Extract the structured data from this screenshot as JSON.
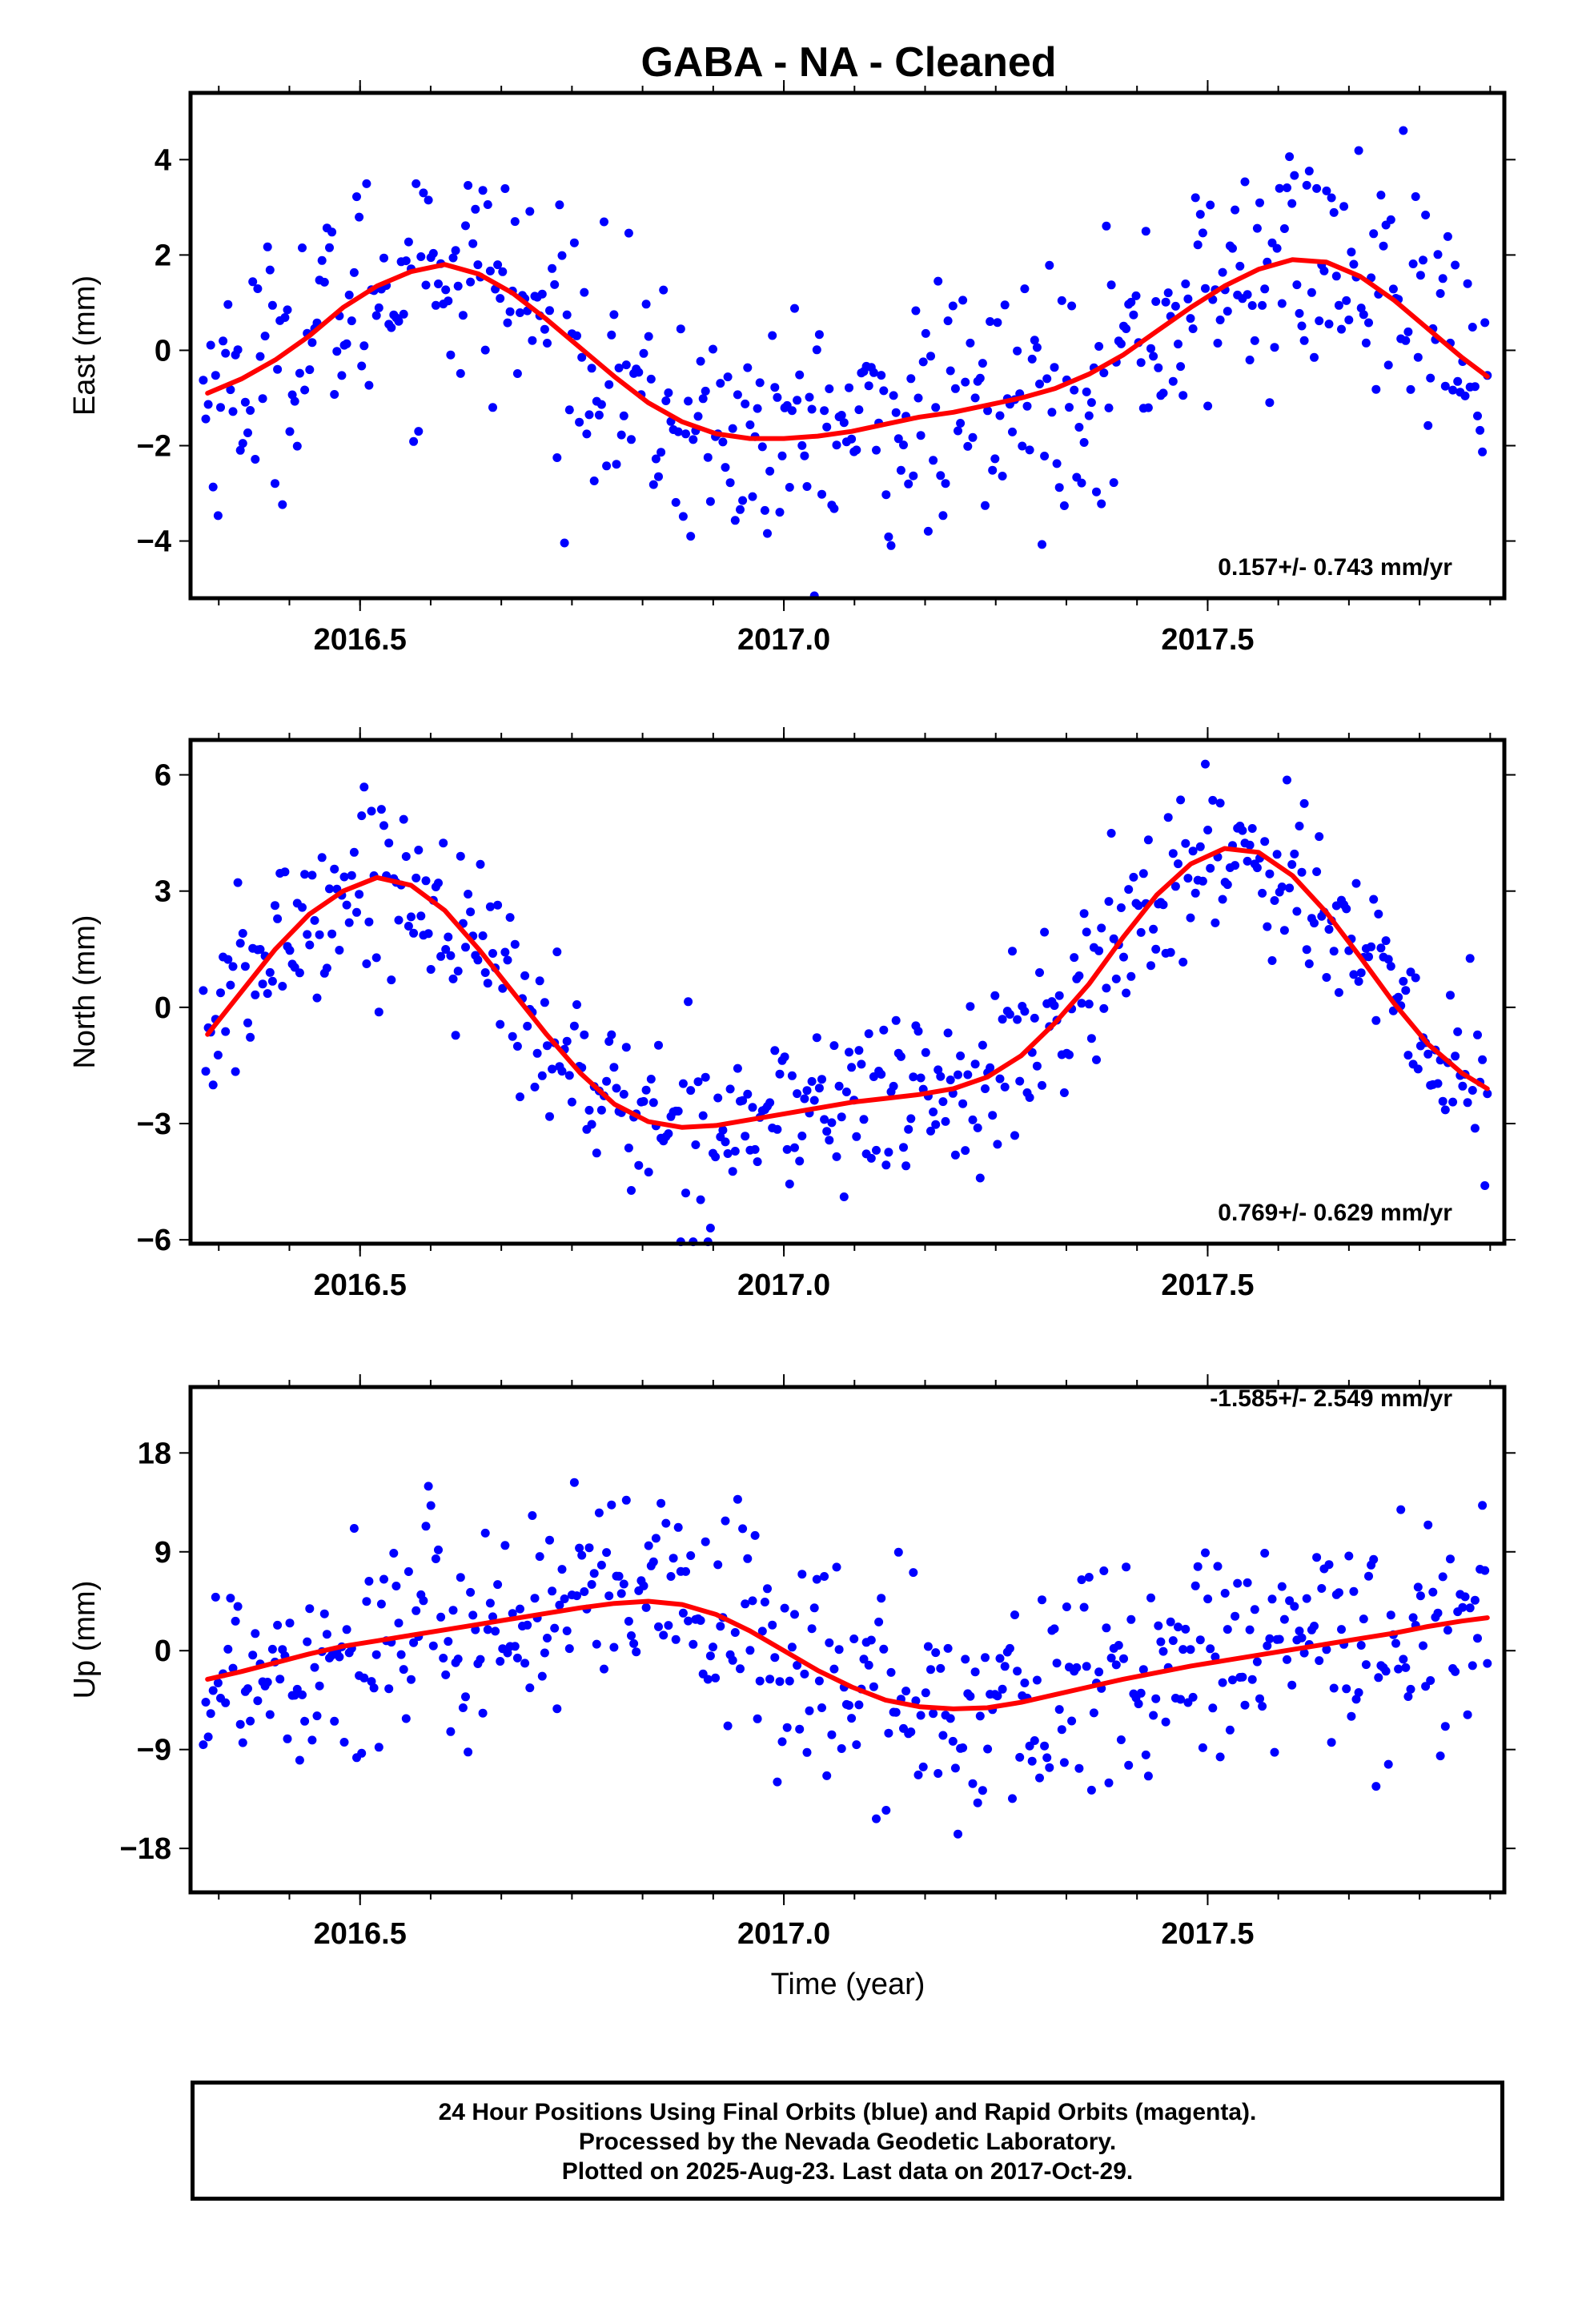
{
  "title": "GABA  - NA - Cleaned",
  "x_axis_label": "Time (year)",
  "footer": {
    "line1": "24 Hour Positions Using Final Orbits (blue) and Rapid Orbits (magenta).",
    "line2": "Processed by the Nevada Geodetic Laboratory.",
    "line3": "Plotted on 2025-Aug-23. Last data on 2017-Oct-29."
  },
  "colors": {
    "final_orbits": "#0000ff",
    "rapid_orbits": "#ff00ff",
    "model": "#ff0000"
  },
  "chart_data": [
    {
      "type": "scatter",
      "component": "East",
      "ylabel": "East (mm)",
      "xlim": [
        2016.3,
        2017.85
      ],
      "ylim": [
        -5.2,
        5.4
      ],
      "x_ticks": [
        2016.5,
        2017.0,
        2017.5
      ],
      "y_ticks": [
        -4,
        -2,
        0,
        2,
        4
      ],
      "rate_label": "0.157+/- 0.743 mm/yr",
      "model": {
        "x": [
          2016.32,
          2016.36,
          2016.4,
          2016.44,
          2016.48,
          2016.52,
          2016.56,
          2016.6,
          2016.64,
          2016.68,
          2016.72,
          2016.76,
          2016.8,
          2016.84,
          2016.88,
          2016.92,
          2016.96,
          2017.0,
          2017.04,
          2017.08,
          2017.12,
          2017.16,
          2017.2,
          2017.24,
          2017.28,
          2017.32,
          2017.36,
          2017.4,
          2017.44,
          2017.48,
          2017.52,
          2017.56,
          2017.6,
          2017.64,
          2017.68,
          2017.72,
          2017.76,
          2017.8,
          2017.83
        ],
        "y": [
          -0.9,
          -0.6,
          -0.2,
          0.3,
          0.9,
          1.35,
          1.65,
          1.8,
          1.6,
          1.2,
          0.65,
          0.05,
          -0.55,
          -1.1,
          -1.5,
          -1.75,
          -1.85,
          -1.85,
          -1.8,
          -1.7,
          -1.55,
          -1.4,
          -1.3,
          -1.15,
          -1.0,
          -0.8,
          -0.5,
          -0.1,
          0.4,
          0.9,
          1.35,
          1.7,
          1.9,
          1.85,
          1.55,
          1.05,
          0.45,
          -0.15,
          -0.55
        ]
      }
    },
    {
      "type": "scatter",
      "component": "North",
      "ylabel": "North (mm)",
      "xlim": [
        2016.3,
        2017.85
      ],
      "ylim": [
        -6.1,
        6.9
      ],
      "x_ticks": [
        2016.5,
        2017.0,
        2017.5
      ],
      "y_ticks": [
        -6,
        -3,
        0,
        3,
        6
      ],
      "rate_label": "0.769+/- 0.629 mm/yr",
      "model": {
        "x": [
          2016.32,
          2016.36,
          2016.4,
          2016.44,
          2016.48,
          2016.52,
          2016.56,
          2016.6,
          2016.64,
          2016.68,
          2016.72,
          2016.76,
          2016.8,
          2016.84,
          2016.88,
          2016.92,
          2016.96,
          2017.0,
          2017.04,
          2017.08,
          2017.12,
          2017.16,
          2017.2,
          2017.24,
          2017.28,
          2017.32,
          2017.36,
          2017.4,
          2017.44,
          2017.48,
          2017.52,
          2017.56,
          2017.6,
          2017.64,
          2017.68,
          2017.72,
          2017.76,
          2017.8,
          2017.83
        ],
        "y": [
          -0.7,
          0.4,
          1.5,
          2.4,
          3.0,
          3.35,
          3.15,
          2.5,
          1.5,
          0.4,
          -0.7,
          -1.7,
          -2.5,
          -2.95,
          -3.1,
          -3.05,
          -2.9,
          -2.75,
          -2.6,
          -2.45,
          -2.35,
          -2.25,
          -2.1,
          -1.8,
          -1.25,
          -0.4,
          0.6,
          1.8,
          2.9,
          3.7,
          4.1,
          4.0,
          3.4,
          2.45,
          1.3,
          0.1,
          -0.95,
          -1.7,
          -2.1
        ]
      }
    },
    {
      "type": "scatter",
      "component": "Up",
      "ylabel": "Up (mm)",
      "xlim": [
        2016.3,
        2017.85
      ],
      "ylim": [
        -22,
        24
      ],
      "x_ticks": [
        2016.5,
        2017.0,
        2017.5
      ],
      "y_ticks": [
        -18,
        -9,
        0,
        9,
        18
      ],
      "rate_label": "-1.585+/- 2.549 mm/yr",
      "model": {
        "x": [
          2016.32,
          2016.36,
          2016.4,
          2016.44,
          2016.48,
          2016.52,
          2016.56,
          2016.6,
          2016.64,
          2016.68,
          2016.72,
          2016.76,
          2016.8,
          2016.84,
          2016.88,
          2016.92,
          2016.96,
          2017.0,
          2017.04,
          2017.08,
          2017.12,
          2017.16,
          2017.2,
          2017.24,
          2017.28,
          2017.32,
          2017.36,
          2017.4,
          2017.44,
          2017.48,
          2017.52,
          2017.56,
          2017.6,
          2017.64,
          2017.68,
          2017.72,
          2017.76,
          2017.8,
          2017.83
        ],
        "y": [
          -2.6,
          -1.9,
          -1.1,
          -0.3,
          0.4,
          0.9,
          1.4,
          1.9,
          2.4,
          2.9,
          3.4,
          3.9,
          4.3,
          4.5,
          4.2,
          3.3,
          1.8,
          0.0,
          -1.8,
          -3.3,
          -4.5,
          -5.1,
          -5.3,
          -5.2,
          -4.7,
          -4.0,
          -3.3,
          -2.6,
          -2.0,
          -1.4,
          -0.9,
          -0.4,
          0.1,
          0.6,
          1.1,
          1.6,
          2.2,
          2.7,
          3.0
        ]
      }
    }
  ]
}
